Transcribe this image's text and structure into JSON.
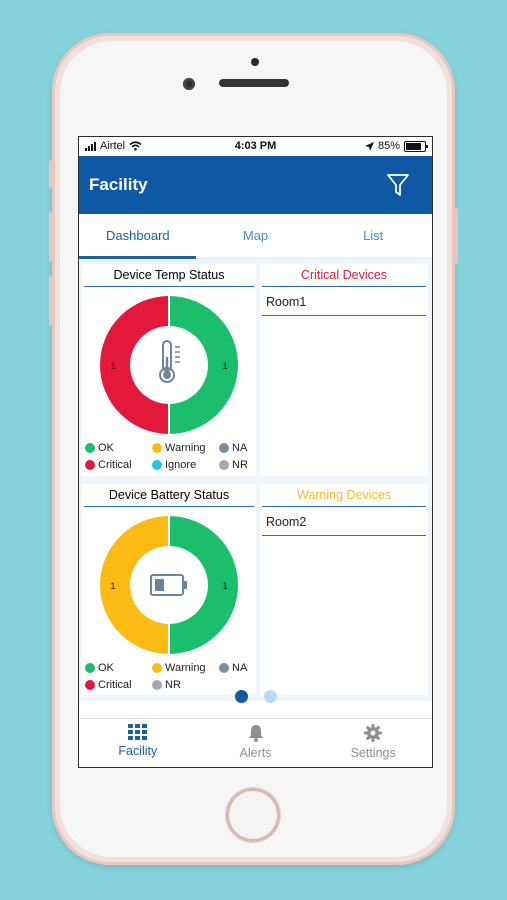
{
  "status_bar": {
    "carrier": "Airtel",
    "time": "4:03 PM",
    "battery_pct": "85%",
    "icons": [
      "signal-icon",
      "wifi-icon",
      "location-arrow-icon",
      "battery-icon"
    ]
  },
  "app_bar": {
    "title": "Facility",
    "action_icon": "filter-icon"
  },
  "tabs": [
    {
      "label": "Dashboard",
      "active": true
    },
    {
      "label": "Map",
      "active": false
    },
    {
      "label": "List",
      "active": false
    }
  ],
  "colors": {
    "primary": "#0f58a3",
    "ok": "#1bbf6b",
    "critical": "#e3193b",
    "warning": "#fcbb14",
    "ignore": "#25c5e9",
    "na": "#7a8fa0",
    "nr": "#a3a9ae",
    "critical_text": "#e3193b",
    "warning_text": "#f7b92a"
  },
  "temp_status": {
    "title": "Device Temp Status",
    "center_icon": "thermometer-icon",
    "segments": [
      {
        "status": "Critical",
        "value": 1
      },
      {
        "status": "OK",
        "value": 1
      }
    ],
    "legend": [
      "OK",
      "Warning",
      "NA",
      "Critical",
      "Ignore",
      "NR"
    ]
  },
  "critical_devices": {
    "title": "Critical Devices",
    "items": [
      "Room1"
    ]
  },
  "battery_status": {
    "title": "Device Battery Status",
    "center_icon": "battery-icon",
    "segments": [
      {
        "status": "Warning",
        "value": 1
      },
      {
        "status": "OK",
        "value": 1
      }
    ],
    "legend": [
      "OK",
      "Warning",
      "NA",
      "Critical",
      "NR"
    ]
  },
  "warning_devices": {
    "title": "Warning Devices",
    "items": [
      "Room2"
    ]
  },
  "pager": {
    "pages": 2,
    "current": 1
  },
  "bottom_nav": [
    {
      "label": "Facility",
      "icon": "grid-icon",
      "active": true
    },
    {
      "label": "Alerts",
      "icon": "bell-icon",
      "active": false
    },
    {
      "label": "Settings",
      "icon": "gear-icon",
      "active": false
    }
  ]
}
